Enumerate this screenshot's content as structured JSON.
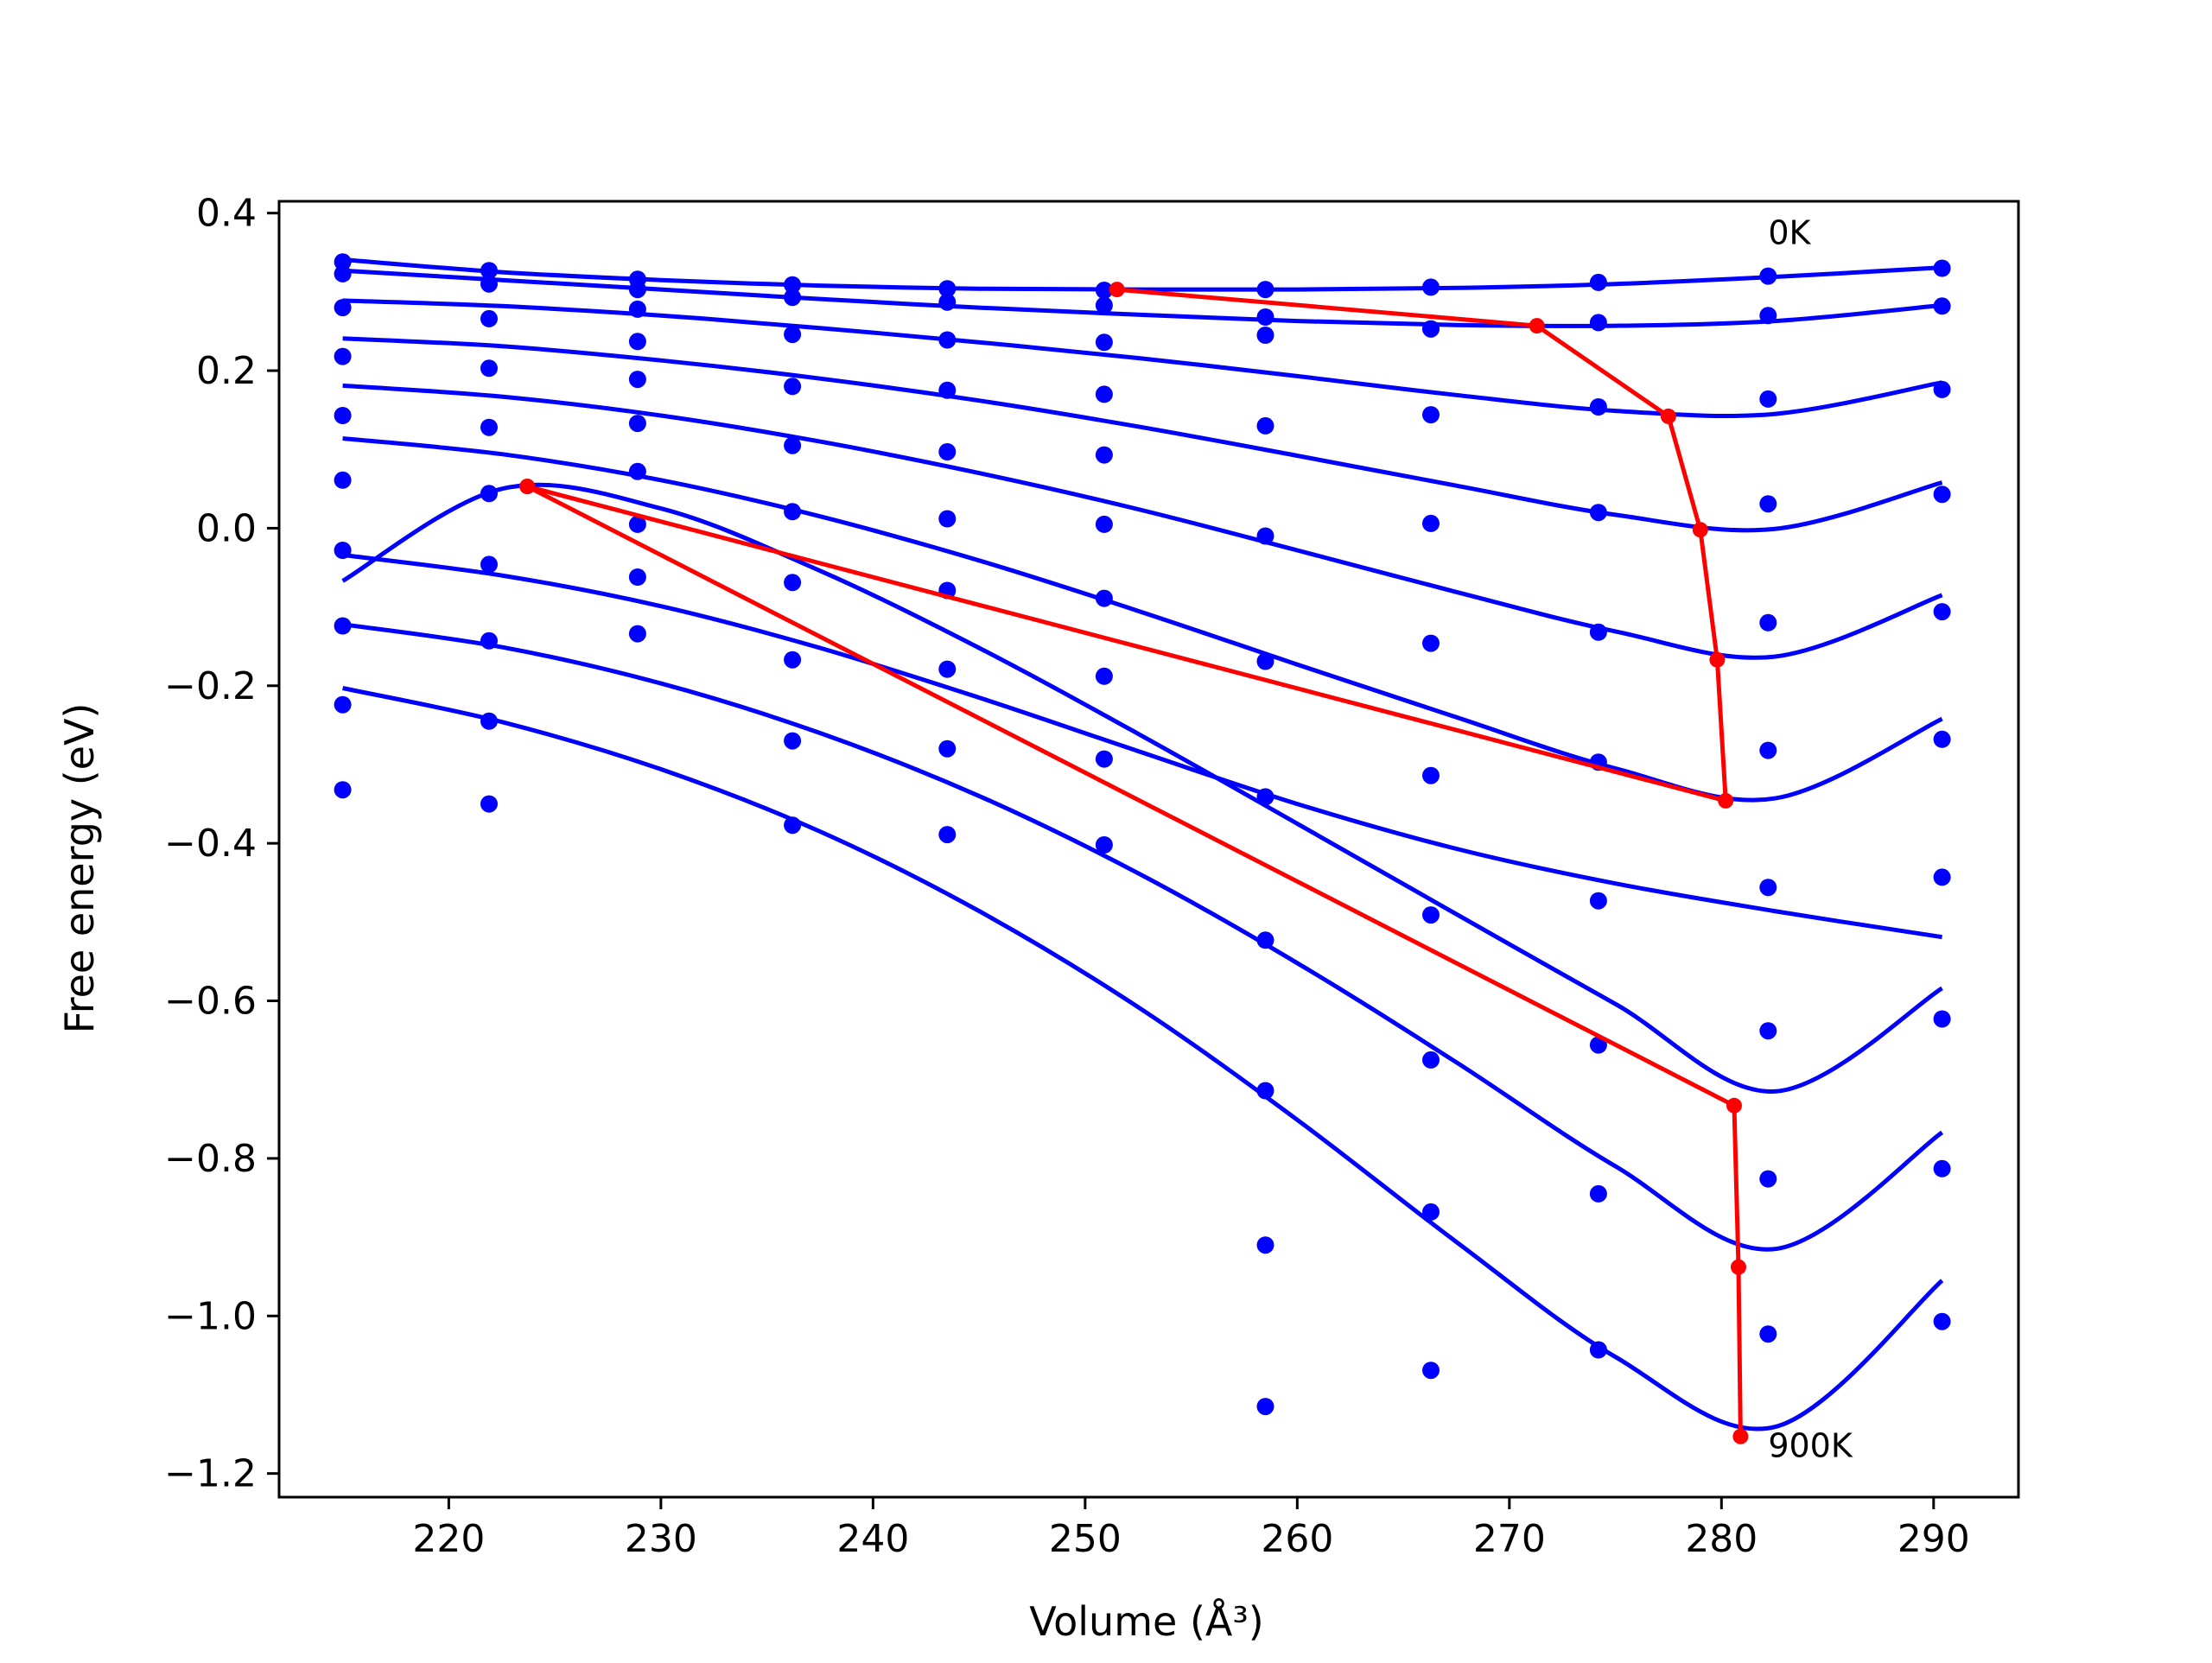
{
  "chart_data": {
    "type": "line",
    "title": "",
    "xlabel": "Volume (Å³)",
    "ylabel": "Free energy (eV)",
    "xlim": [
      212,
      294
    ],
    "ylim": [
      -1.23,
      0.415
    ],
    "xticks": [
      220,
      230,
      240,
      250,
      260,
      270,
      280,
      290
    ],
    "xtick_labels": [
      "220",
      "230",
      "240",
      "250",
      "260",
      "270",
      "280",
      "290"
    ],
    "yticks": [
      0.4,
      0.2,
      0.0,
      -0.2,
      -0.4,
      -0.6,
      -0.8,
      -1.0,
      -1.2
    ],
    "ytick_labels": [
      "0.4",
      "0.2",
      "0.0",
      "−0.2",
      "−0.4",
      "−0.6",
      "−0.8",
      "−1.0",
      "−1.2"
    ],
    "grid": false,
    "annotations": [
      {
        "text": "0K",
        "x": 282.2,
        "y": 0.375
      },
      {
        "text": "900K",
        "x": 282.2,
        "y": -1.165
      }
    ],
    "colors": {
      "points": "#0000ff",
      "fits": "#0000ff",
      "minima_path": "#ff0000"
    },
    "volumes": [
      215.0,
      221.9,
      228.9,
      236.2,
      243.5,
      250.9,
      258.5,
      266.3,
      274.2,
      282.2,
      290.4
    ],
    "point_series": [
      {
        "values": [
          0.338,
          0.327,
          0.316,
          0.309,
          0.304,
          0.302,
          0.303,
          0.306,
          0.312,
          0.32,
          0.33
        ]
      },
      {
        "values": [
          0.323,
          0.31,
          0.303,
          0.293,
          0.287,
          0.283,
          0.268,
          0.253,
          0.261,
          0.27,
          0.282
        ]
      },
      {
        "values": [
          0.28,
          0.266,
          0.278,
          0.246,
          0.239,
          0.236,
          0.245,
          0.253,
          0.154,
          0.164,
          0.176
        ]
      },
      {
        "values": [
          0.218,
          0.203,
          0.237,
          0.18,
          0.175,
          0.17,
          0.13,
          0.144,
          0.02,
          0.031,
          0.043
        ]
      },
      {
        "values": [
          0.143,
          0.128,
          0.189,
          0.105,
          0.097,
          0.093,
          -0.01,
          0.006,
          -0.132,
          -0.12,
          -0.106
        ]
      },
      {
        "values": [
          0.061,
          0.044,
          0.133,
          0.021,
          0.012,
          0.005,
          -0.169,
          -0.146,
          -0.297,
          -0.282,
          -0.268
        ]
      },
      {
        "values": [
          -0.028,
          -0.046,
          0.072,
          -0.069,
          -0.079,
          -0.089,
          -0.341,
          -0.314,
          -0.473,
          -0.456,
          -0.443
        ]
      },
      {
        "values": [
          -0.124,
          -0.143,
          0.005,
          -0.167,
          -0.179,
          -0.188,
          -0.523,
          -0.491,
          -0.656,
          -0.638,
          -0.623
        ]
      },
      {
        "values": [
          -0.224,
          -0.245,
          -0.062,
          -0.27,
          -0.28,
          -0.293,
          -0.714,
          -0.675,
          -0.845,
          -0.826,
          -0.813
        ]
      },
      {
        "values": [
          -0.332,
          -0.35,
          -0.134,
          -0.377,
          -0.389,
          -0.402,
          -0.91,
          -0.868,
          -1.043,
          -1.023,
          -1.007
        ]
      },
      {
        "values": [
          null,
          null,
          null,
          null,
          null,
          null,
          -1.115,
          -1.069,
          null,
          null,
          null
        ]
      }
    ],
    "fit_curves": [
      {
        "x": [
          215.0,
          222.5,
          230.0,
          237.5,
          245.0,
          252.5,
          260.0,
          267.5,
          275.0,
          282.5,
          290.4
        ],
        "values": [
          0.341,
          0.325,
          0.315,
          0.308,
          0.304,
          0.303,
          0.303,
          0.305,
          0.31,
          0.319,
          0.331
        ]
      },
      {
        "x": [
          215.0,
          222.5,
          230.0,
          237.5,
          245.0,
          252.5,
          260.0,
          267.5,
          275.0,
          282.5,
          290.4
        ],
        "values": [
          0.327,
          0.315,
          0.303,
          0.291,
          0.28,
          0.271,
          0.263,
          0.258,
          0.257,
          0.263,
          0.283
        ]
      },
      {
        "x": [
          215.0,
          222.5,
          230.0,
          237.5,
          245.0,
          252.5,
          260.0,
          267.5,
          275.0,
          282.5,
          290.4
        ],
        "values": [
          0.289,
          0.282,
          0.27,
          0.254,
          0.236,
          0.216,
          0.193,
          0.169,
          0.149,
          0.145,
          0.185
        ]
      },
      {
        "x": [
          215.0,
          222.5,
          230.0,
          237.5,
          245.0,
          252.5,
          260.0,
          267.5,
          275.0,
          282.5,
          290.4
        ],
        "values": [
          0.241,
          0.231,
          0.213,
          0.19,
          0.162,
          0.129,
          0.092,
          0.054,
          0.017,
          -0.001,
          0.058
        ]
      },
      {
        "x": [
          215.0,
          222.5,
          230.0,
          237.5,
          245.0,
          252.5,
          260.0,
          267.5,
          275.0,
          282.5,
          290.4
        ],
        "values": [
          0.181,
          0.167,
          0.143,
          0.11,
          0.07,
          0.024,
          -0.028,
          -0.081,
          -0.131,
          -0.163,
          -0.085
        ]
      },
      {
        "x": [
          215.0,
          222.5,
          230.0,
          237.5,
          245.0,
          252.5,
          260.0,
          267.5,
          275.0,
          282.5,
          290.4
        ],
        "values": [
          0.114,
          0.094,
          0.061,
          0.015,
          -0.041,
          -0.105,
          -0.173,
          -0.24,
          -0.305,
          -0.343,
          -0.242
        ]
      },
      {
        "x": [
          215.0,
          222.5,
          230.0,
          237.5,
          245.0,
          252.5,
          260.0,
          267.5,
          275.0,
          282.5,
          290.4
        ],
        "values": [
          -0.034,
          -0.06,
          -0.099,
          -0.152,
          -0.215,
          -0.283,
          -0.35,
          -0.407,
          -0.451,
          -0.486,
          -0.519
        ]
      },
      {
        "x": [
          215.0,
          222.5,
          230.0,
          237.5,
          245.0,
          252.5,
          260.0,
          267.5,
          275.0,
          282.5,
          290.4
        ],
        "values": [
          -0.067,
          0.05,
          0.025,
          -0.054,
          -0.152,
          -0.261,
          -0.375,
          -0.49,
          -0.604,
          -0.715,
          -0.584
        ]
      },
      {
        "x": [
          215.0,
          222.5,
          230.0,
          237.5,
          245.0,
          252.5,
          260.0,
          267.5,
          275.0,
          282.5,
          290.4
        ],
        "values": [
          -0.122,
          -0.151,
          -0.197,
          -0.26,
          -0.34,
          -0.438,
          -0.552,
          -0.678,
          -0.81,
          -0.915,
          -0.767
        ]
      },
      {
        "x": [
          215.0,
          222.5,
          230.0,
          237.5,
          245.0,
          252.5,
          260.0,
          267.5,
          275.0,
          282.5,
          290.4
        ],
        "values": [
          -0.203,
          -0.246,
          -0.306,
          -0.385,
          -0.486,
          -0.608,
          -0.751,
          -0.906,
          -1.052,
          -1.141,
          -0.955
        ]
      }
    ],
    "minima_path": {
      "segments": [
        [
          [
            251.5,
            0.303
          ],
          [
            271.3,
            0.257
          ],
          [
            277.5,
            0.142
          ],
          [
            279.0,
            -0.002
          ],
          [
            279.8,
            -0.167
          ],
          [
            280.2,
            -0.346
          ],
          [
            223.7,
            0.053
          ]
        ],
        [
          [
            223.7,
            0.053
          ],
          [
            280.6,
            -0.733
          ],
          [
            280.8,
            -0.938
          ],
          [
            280.9,
            -1.153
          ]
        ]
      ]
    }
  }
}
